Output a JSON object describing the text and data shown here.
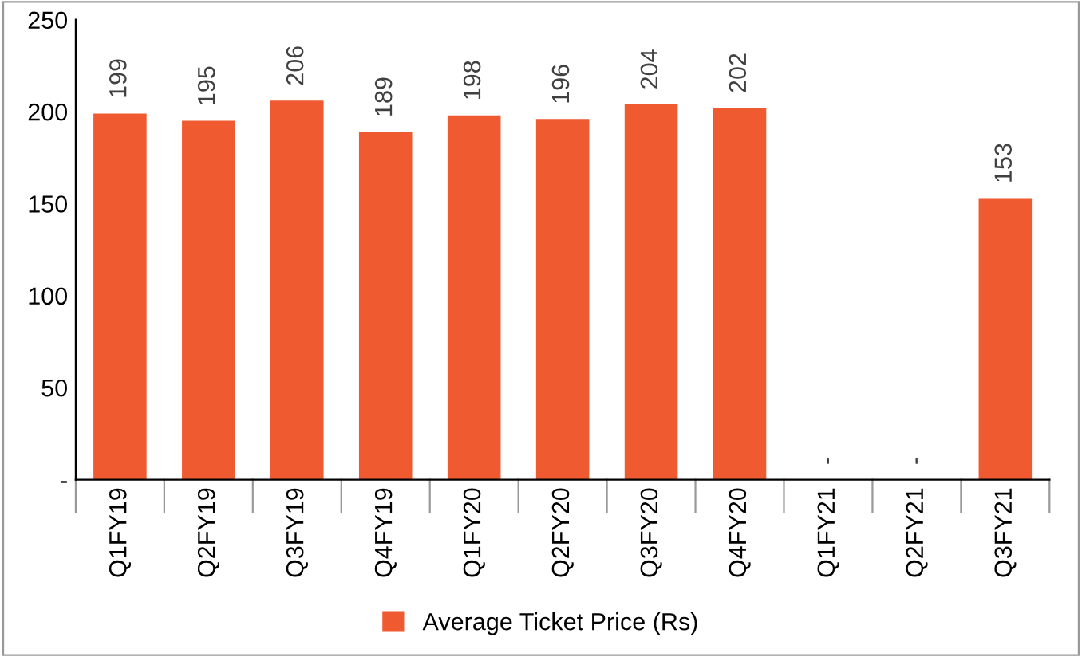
{
  "chart_data": {
    "type": "bar",
    "categories": [
      "Q1FY19",
      "Q2FY19",
      "Q3FY19",
      "Q4FY19",
      "Q1FY20",
      "Q2FY20",
      "Q3FY20",
      "Q4FY20",
      "Q1FY21",
      "Q2FY21",
      "Q3FY21"
    ],
    "series": [
      {
        "name": "Average Ticket Price (Rs)",
        "color": "#f05a30",
        "values": [
          199,
          195,
          206,
          189,
          198,
          196,
          204,
          202,
          0,
          0,
          153
        ],
        "value_labels": [
          "199",
          "195",
          "206",
          "189",
          "198",
          "196",
          "204",
          "202",
          "-",
          "-",
          "153"
        ]
      }
    ],
    "ylim": [
      0,
      250
    ],
    "yticks": [
      {
        "value": 0,
        "label": "-"
      },
      50,
      100,
      150,
      200,
      250
    ],
    "grid": false,
    "legend": "bottom"
  }
}
